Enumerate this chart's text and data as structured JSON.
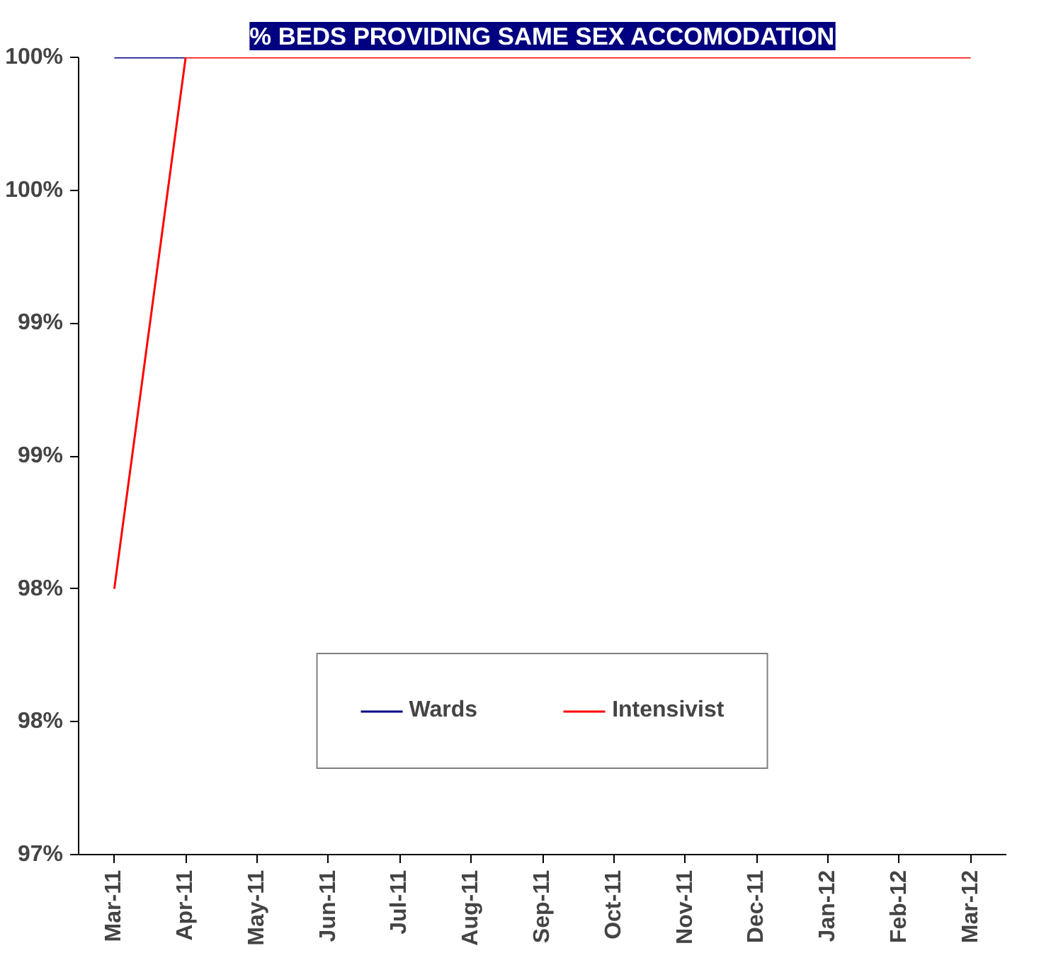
{
  "chart_data": {
    "type": "line",
    "title": "% BEDS PROVIDING SAME SEX ACCOMODATION",
    "categories": [
      "Mar-11",
      "Apr-11",
      "May-11",
      "Jun-11",
      "Jul-11",
      "Aug-11",
      "Sep-11",
      "Oct-11",
      "Nov-11",
      "Dec-11",
      "Jan-12",
      "Feb-12",
      "Mar-12"
    ],
    "series": [
      {
        "name": "Wards",
        "color": "#000080",
        "values": [
          100,
          100,
          null,
          null,
          null,
          null,
          null,
          null,
          null,
          null,
          null,
          null,
          null
        ]
      },
      {
        "name": "Intensivist",
        "color": "#ff0000",
        "values": [
          98,
          100,
          100,
          100,
          100,
          100,
          100,
          100,
          100,
          100,
          100,
          100,
          100
        ]
      }
    ],
    "ylim": [
      97,
      100
    ],
    "yticks": [
      {
        "value": 97,
        "label": "97%"
      },
      {
        "value": 97.5,
        "label": "98%"
      },
      {
        "value": 98,
        "label": "98%"
      },
      {
        "value": 98.5,
        "label": "99%"
      },
      {
        "value": 99,
        "label": "99%"
      },
      {
        "value": 99.5,
        "label": "100%"
      },
      {
        "value": 100,
        "label": "100%"
      }
    ],
    "grid": false,
    "legend": "bottom",
    "marker": "none",
    "line_style": "solid"
  }
}
